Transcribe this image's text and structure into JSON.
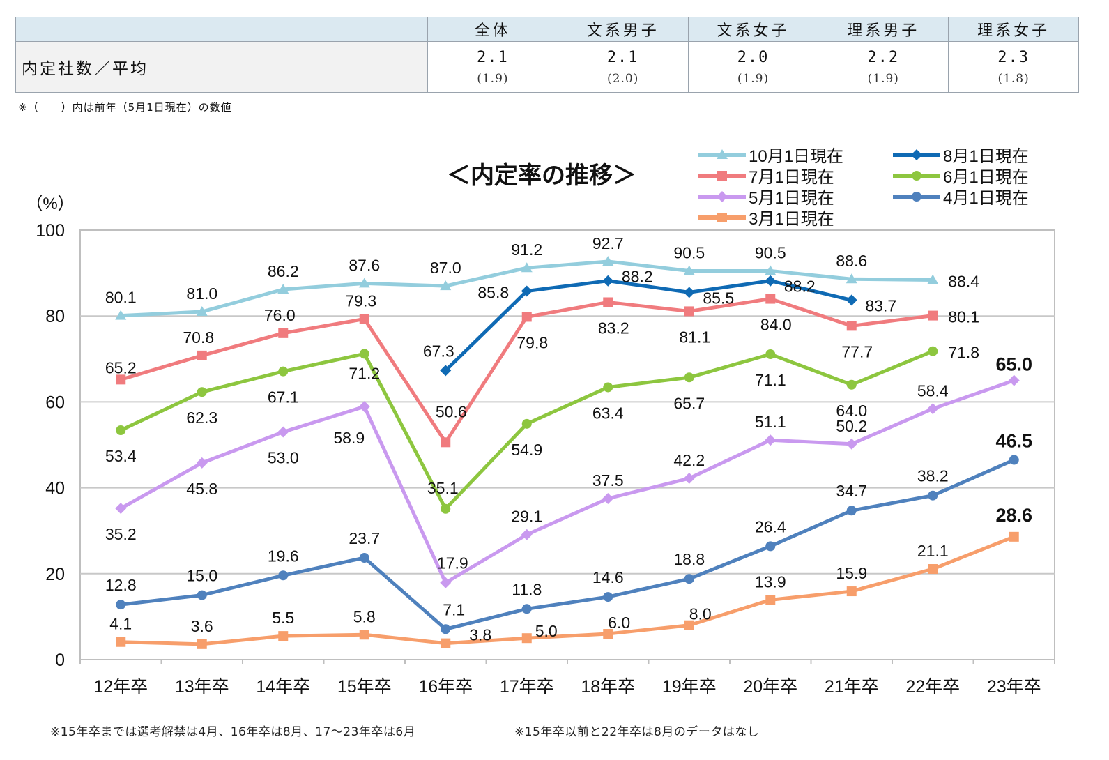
{
  "summary": {
    "row_label": "内定社数／平均",
    "columns": [
      {
        "header": "全体",
        "value": "2.1",
        "prev": "(1.9)"
      },
      {
        "header": "文系男子",
        "value": "2.1",
        "prev": "(2.0)"
      },
      {
        "header": "文系女子",
        "value": "2.0",
        "prev": "(1.9)"
      },
      {
        "header": "理系男子",
        "value": "2.2",
        "prev": "(1.9)"
      },
      {
        "header": "理系女子",
        "value": "2.3",
        "prev": "(1.8)"
      }
    ],
    "note": "※（　　）内は前年（5月1日現在）の数値"
  },
  "chart_data": {
    "type": "line",
    "title": "＜内定率の推移＞",
    "ylabel": "（%）",
    "xlabel": "",
    "ylim": [
      0,
      100
    ],
    "yticks": [
      0,
      20,
      40,
      60,
      80,
      100
    ],
    "categories": [
      "12年卒",
      "13年卒",
      "14年卒",
      "15年卒",
      "16年卒",
      "17年卒",
      "18年卒",
      "19年卒",
      "20年卒",
      "21年卒",
      "22年卒",
      "23年卒"
    ],
    "series": [
      {
        "name": "10月1日現在",
        "color": "#93cddd",
        "marker": "triangle",
        "values": [
          80.1,
          81.0,
          86.2,
          87.6,
          87.0,
          91.2,
          92.7,
          90.5,
          90.5,
          88.6,
          88.4,
          null
        ]
      },
      {
        "name": "8月1日現在",
        "color": "#0f6ab4",
        "marker": "diamond",
        "values": [
          null,
          null,
          null,
          null,
          67.3,
          85.8,
          88.2,
          85.5,
          88.2,
          83.7,
          null,
          null
        ]
      },
      {
        "name": "7月1日現在",
        "color": "#f07b7e",
        "marker": "square",
        "values": [
          65.2,
          70.8,
          76.0,
          79.3,
          50.6,
          79.8,
          83.2,
          81.1,
          84.0,
          77.7,
          80.1,
          null
        ]
      },
      {
        "name": "6月1日現在",
        "color": "#8dc63f",
        "marker": "circle",
        "values": [
          53.4,
          62.3,
          67.1,
          71.2,
          35.1,
          54.9,
          63.4,
          65.7,
          71.1,
          64.0,
          71.8,
          null
        ]
      },
      {
        "name": "5月1日現在",
        "color": "#c999ef",
        "marker": "diamond",
        "values": [
          35.2,
          45.8,
          53.0,
          58.9,
          17.9,
          29.1,
          37.5,
          42.2,
          51.1,
          50.2,
          58.4,
          65.0
        ]
      },
      {
        "name": "4月1日現在",
        "color": "#4f81bd",
        "marker": "circle",
        "values": [
          12.8,
          15.0,
          19.6,
          23.7,
          7.1,
          11.8,
          14.6,
          18.8,
          26.4,
          34.7,
          38.2,
          46.5
        ]
      },
      {
        "name": "3月1日現在",
        "color": "#f79e6b",
        "marker": "square",
        "values": [
          4.1,
          3.6,
          5.5,
          5.8,
          3.8,
          5.0,
          6.0,
          8.0,
          13.9,
          15.9,
          21.1,
          28.6
        ]
      }
    ],
    "legend_order": [
      "10月1日現在",
      "8月1日現在",
      "7月1日現在",
      "6月1日現在",
      "5月1日現在",
      "4月1日現在",
      "3月1日現在"
    ],
    "legend_position": "top-right",
    "grid": true
  },
  "footnotes": [
    "※15年卒までは選考解禁は4月、16年卒は8月、17～23年卒は6月",
    "※15年卒以前と22年卒は8月のデータはなし"
  ]
}
